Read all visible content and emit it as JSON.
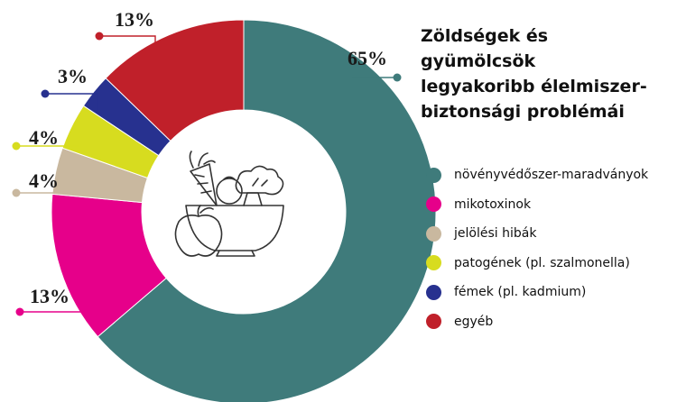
{
  "chart_data": {
    "type": "pie",
    "subtype": "donut",
    "title": "Zöldségek és gyümölcsök legyakoribb élelmiszer-biztonsági problémái",
    "title_lines": [
      "Zöldségek és gyümölcsök",
      "legyakoribb élelmiszer-",
      "biztonsági problémái"
    ],
    "categories": [
      "növényvédőszer-maradványok",
      "mikotoxinok",
      "jelölési hibák",
      "patogének (pl. szalmonella)",
      "fémek (pl. kadmium)",
      "egyéb"
    ],
    "values": [
      65,
      13,
      4,
      4,
      3,
      13
    ],
    "value_labels": [
      "65%",
      "13%",
      "4%",
      "4%",
      "3%",
      "13%"
    ],
    "colors": [
      "#3f7b7b",
      "#e6008a",
      "#c9b89f",
      "#d7dc1f",
      "#27318f",
      "#c0202a"
    ],
    "legend_placement": "right",
    "center_icon": "vegetable-bowl-icon"
  }
}
